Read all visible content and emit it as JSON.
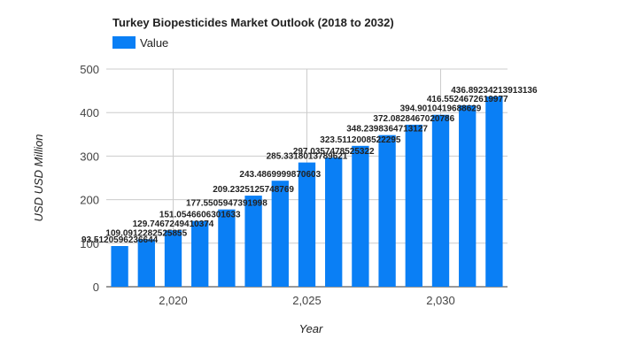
{
  "chart_data": {
    "type": "bar",
    "title": "Turkey Biopesticides Market Outlook (2018 to 2032)",
    "xlabel": "Year",
    "ylabel": "USD USD Million",
    "legend": {
      "position": "top-left",
      "entries": [
        "Value"
      ]
    },
    "color": "#0a7ff5",
    "grid": true,
    "ylim": [
      0,
      500
    ],
    "yticks": [
      "0",
      "100",
      "200",
      "300",
      "400",
      "500"
    ],
    "xticks": [
      {
        "year": 2020,
        "label": "2,020"
      },
      {
        "year": 2025,
        "label": "2,025"
      },
      {
        "year": 2030,
        "label": "2,030"
      }
    ],
    "x": [
      2018,
      2019,
      2020,
      2021,
      2022,
      2023,
      2024,
      2025,
      2026,
      2027,
      2028,
      2029,
      2030,
      2031,
      2032
    ],
    "series": [
      {
        "name": "Value",
        "values": [
          93.5120596236644,
          109.0912282525855,
          129.7467249410374,
          151.0546606301633,
          177.5505947391998,
          209.2325125748769,
          243.4869999870603,
          285.3318013789621,
          297.0357478525322,
          323.5112008522295,
          348.2398364713127,
          372.0828467020786,
          394.9010419688629,
          416.5524672619977,
          436.89234213913136
        ],
        "labels": [
          "93.5120596236644",
          "109.0912282525855",
          "129.7467249410374",
          "151.0546606301633",
          "177.5505947391998",
          "209.2325125748769",
          "243.4869999870603",
          "285.3318013789621",
          "297.0357478525322",
          "323.5112008522295",
          "348.2398364713127",
          "372.0828467020786",
          "394.9010419688629",
          "416.5524672619977",
          "436.89234213913136"
        ]
      }
    ]
  }
}
